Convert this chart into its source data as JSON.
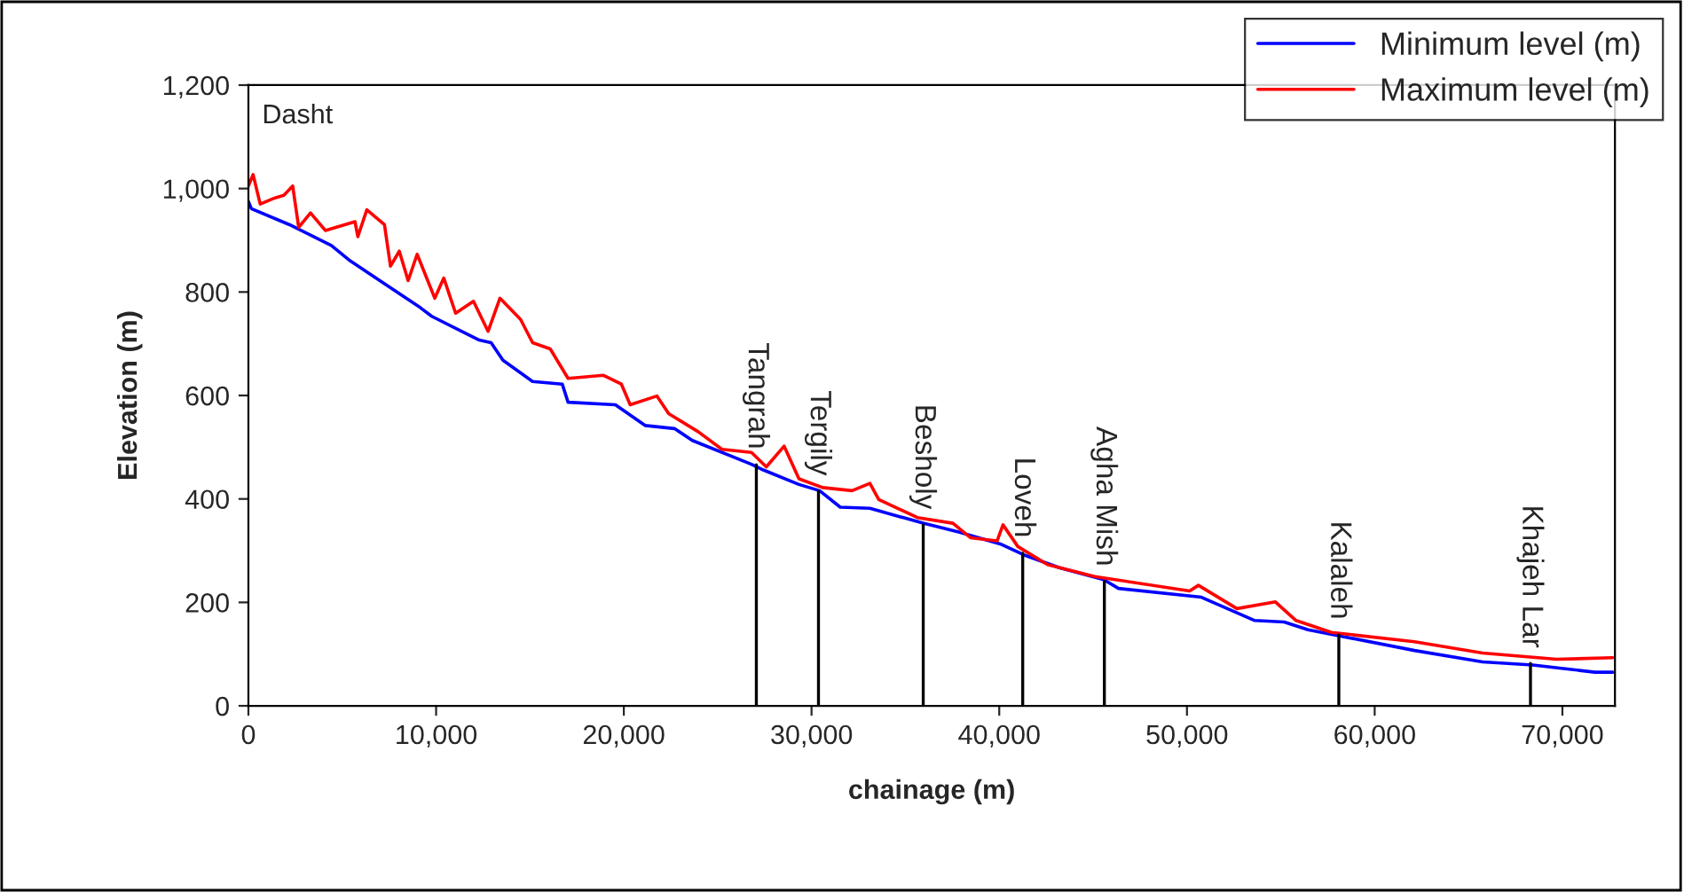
{
  "chart_data": {
    "type": "line",
    "xlabel": "chainage (m)",
    "ylabel": "Elevation (m)",
    "xlim": [
      0,
      72800
    ],
    "xticks": [
      {
        "value": 0,
        "label": "0"
      },
      {
        "value": 10000,
        "label": "10,000"
      },
      {
        "value": 20000,
        "label": "20,000"
      },
      {
        "value": 30000,
        "label": "30,000"
      },
      {
        "value": 40000,
        "label": "40,000"
      },
      {
        "value": 50000,
        "label": "50,000"
      },
      {
        "value": 60000,
        "label": "60,000"
      },
      {
        "value": 70000,
        "label": "70,000"
      }
    ],
    "ylim": [
      0,
      1200
    ],
    "yticks": [
      {
        "value": 0,
        "label": "0"
      },
      {
        "value": 200,
        "label": "200"
      },
      {
        "value": 400,
        "label": "400"
      },
      {
        "value": 600,
        "label": "600"
      },
      {
        "value": 800,
        "label": "800"
      },
      {
        "value": 1000,
        "label": "1,000"
      },
      {
        "value": 1200,
        "label": "1,200"
      }
    ],
    "grid": false,
    "legend": "top right",
    "marker": "none",
    "line_style": "solid",
    "series": [
      {
        "name": "Minimum level (m)",
        "color": "#0000ff",
        "x": [
          0,
          160,
          2200,
          4420,
          5360,
          7250,
          9150,
          9770,
          12300,
          12930,
          13560,
          15140,
          16720,
          17030,
          19550,
          21130,
          22700,
          23650,
          26800,
          27430,
          29330,
          30430,
          31530,
          33110,
          35950,
          37840,
          40050,
          41300,
          43200,
          45570,
          46350,
          50770,
          53610,
          55180,
          56450,
          58020,
          62120,
          65750,
          68430,
          69850,
          71740,
          72680
        ],
        "values": [
          975,
          961,
          930,
          890,
          862,
          816,
          770,
          753,
          707,
          702,
          668,
          627,
          622,
          587,
          582,
          542,
          536,
          513,
          467,
          456,
          428,
          416,
          384,
          382,
          353,
          336,
          313,
          292,
          267,
          244,
          227,
          210,
          165,
          162,
          147,
          136,
          107,
          85,
          79,
          73,
          65,
          65
        ]
      },
      {
        "name": "Maximum level (m)",
        "color": "#ff0000",
        "x": [
          0,
          250,
          630,
          1420,
          1890,
          2360,
          2680,
          3310,
          4100,
          5680,
          5830,
          6310,
          7250,
          7570,
          8040,
          8510,
          8990,
          9930,
          10410,
          11040,
          11990,
          12770,
          13400,
          14500,
          15140,
          16080,
          17030,
          18920,
          19870,
          20340,
          21760,
          22390,
          23960,
          25230,
          26800,
          27590,
          28540,
          29330,
          30590,
          32160,
          33110,
          33580,
          35640,
          37530,
          38470,
          39890,
          40200,
          40990,
          42570,
          45090,
          50140,
          50610,
          52660,
          54710,
          55810,
          57700,
          62120,
          65750,
          69690,
          72680
        ],
        "values": [
          1005,
          1027,
          970,
          982,
          987,
          1005,
          925,
          953,
          919,
          936,
          907,
          959,
          930,
          850,
          879,
          822,
          873,
          788,
          827,
          759,
          782,
          724,
          788,
          747,
          702,
          690,
          633,
          639,
          622,
          582,
          599,
          565,
          530,
          496,
          490,
          462,
          502,
          439,
          422,
          416,
          430,
          399,
          364,
          353,
          325,
          319,
          350,
          308,
          273,
          250,
          222,
          233,
          188,
          201,
          165,
          142,
          124,
          102,
          90,
          93
        ]
      }
    ],
    "annotations": [
      "Dasht",
      {
        "text": "Tangrah",
        "x": 27060,
        "y": 466
      },
      {
        "text": "Tergily",
        "x": 30370,
        "y": 415
      },
      {
        "text": "Besholy",
        "x": 35950,
        "y": 350
      },
      {
        "text": "Loveh",
        "x": 41250,
        "y": 295
      },
      {
        "text": "Agha Mish",
        "x": 45600,
        "y": 240
      },
      {
        "text": "Kalaleh",
        "x": 58090,
        "y": 137
      },
      {
        "text": "Khajeh Lar",
        "x": 68300,
        "y": 82
      }
    ]
  }
}
